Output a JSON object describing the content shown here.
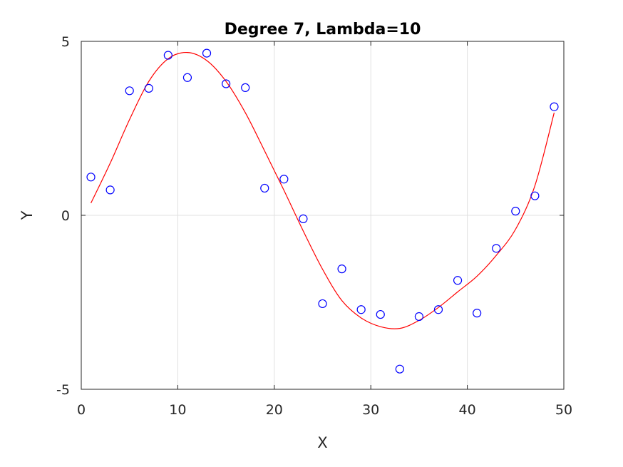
{
  "chart_data": {
    "type": "scatter",
    "title": "Degree 7, Lambda=10",
    "xlabel": "X",
    "ylabel": "Y",
    "xlim": [
      0,
      50
    ],
    "ylim": [
      -5,
      5
    ],
    "xticks": [
      0,
      10,
      20,
      30,
      40,
      50
    ],
    "xtick_labels": [
      "0",
      "10",
      "20",
      "30",
      "40",
      "50"
    ],
    "yticks": [
      -5,
      0,
      5
    ],
    "ytick_labels": [
      "-5",
      "0",
      "5"
    ],
    "grid": true,
    "series": [
      {
        "type": "scatter",
        "marker": "open-circle",
        "color": "#0000ff",
        "x": [
          1,
          3,
          5,
          7,
          9,
          11,
          13,
          15,
          17,
          19,
          21,
          23,
          25,
          27,
          29,
          31,
          33,
          35,
          37,
          39,
          41,
          43,
          45,
          47,
          49
        ],
        "y": [
          1.1,
          0.73,
          3.58,
          3.65,
          4.6,
          3.96,
          4.66,
          3.78,
          3.67,
          0.78,
          1.04,
          -0.1,
          -2.54,
          -1.54,
          -2.71,
          -2.85,
          -4.42,
          -2.91,
          -2.71,
          -1.87,
          -2.81,
          -0.95,
          0.12,
          0.56,
          3.12
        ]
      },
      {
        "type": "line",
        "color": "#ff0000",
        "x": [
          1,
          3,
          5,
          7,
          9,
          11,
          13,
          15,
          17,
          19,
          21,
          23,
          25,
          27,
          29,
          31,
          33,
          35,
          37,
          39,
          41,
          43,
          45,
          47,
          49
        ],
        "y": [
          0.35,
          1.5,
          2.75,
          3.85,
          4.5,
          4.68,
          4.45,
          3.85,
          2.95,
          1.85,
          0.72,
          -0.45,
          -1.55,
          -2.45,
          -2.95,
          -3.2,
          -3.25,
          -3.02,
          -2.65,
          -2.2,
          -1.75,
          -1.15,
          -0.4,
          0.85,
          2.95
        ]
      }
    ]
  }
}
